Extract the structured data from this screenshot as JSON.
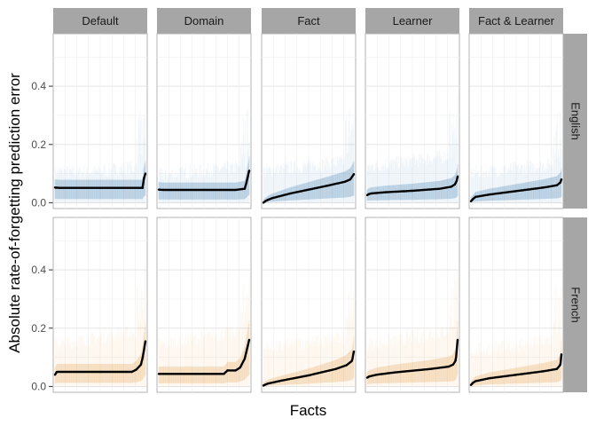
{
  "chart_data": {
    "type": "line",
    "xlabel": "Facts",
    "ylabel": "Absolute rate-of-forgetting prediction error",
    "ylim": [
      -0.02,
      0.58
    ],
    "yticks": [
      0.0,
      0.2,
      0.4
    ],
    "ytick_labels": [
      "0.0",
      "0.2",
      "0.4"
    ],
    "x_ticks_shown": false,
    "grid": true,
    "columns": [
      "Default",
      "Domain",
      "Fact",
      "Learner",
      "Fact & Learner"
    ],
    "rows": [
      "English",
      "French"
    ],
    "colors": {
      "English": "#4a86b5",
      "French": "#e6a85c",
      "line": "#000000",
      "strip": "#a6a6a6"
    },
    "panels": [
      {
        "row": "English",
        "column": "Default",
        "x": [
          0,
          0.05,
          0.5,
          0.97,
          0.98,
          1.0
        ],
        "y": [
          0.052,
          0.051,
          0.051,
          0.051,
          0.08,
          0.1
        ]
      },
      {
        "row": "English",
        "column": "Domain",
        "x": [
          0,
          0.05,
          0.5,
          0.85,
          0.9,
          0.95,
          0.97,
          1.0
        ],
        "y": [
          0.045,
          0.044,
          0.044,
          0.044,
          0.046,
          0.048,
          0.07,
          0.11
        ]
      },
      {
        "row": "English",
        "column": "Fact",
        "x": [
          0,
          0.02,
          0.05,
          0.1,
          0.3,
          0.5,
          0.7,
          0.9,
          0.96,
          1.0
        ],
        "y": [
          0.0,
          0.005,
          0.01,
          0.016,
          0.032,
          0.045,
          0.058,
          0.072,
          0.08,
          0.098
        ]
      },
      {
        "row": "English",
        "column": "Learner",
        "x": [
          0,
          0.02,
          0.05,
          0.2,
          0.5,
          0.8,
          0.93,
          0.97,
          0.99,
          1.0
        ],
        "y": [
          0.026,
          0.03,
          0.032,
          0.036,
          0.041,
          0.048,
          0.055,
          0.063,
          0.075,
          0.09
        ]
      },
      {
        "row": "English",
        "column": "Fact & Learner",
        "x": [
          0,
          0.02,
          0.05,
          0.2,
          0.5,
          0.8,
          0.95,
          0.99,
          1.0
        ],
        "y": [
          0.005,
          0.012,
          0.02,
          0.028,
          0.04,
          0.052,
          0.06,
          0.07,
          0.08
        ]
      },
      {
        "row": "French",
        "column": "Default",
        "x": [
          0,
          0.02,
          0.5,
          0.85,
          0.9,
          0.95,
          0.97,
          1.0
        ],
        "y": [
          0.04,
          0.05,
          0.05,
          0.05,
          0.058,
          0.075,
          0.1,
          0.155
        ]
      },
      {
        "row": "French",
        "column": "Domain",
        "x": [
          0,
          0.05,
          0.5,
          0.72,
          0.76,
          0.85,
          0.9,
          0.95,
          1.0
        ],
        "y": [
          0.043,
          0.043,
          0.043,
          0.043,
          0.055,
          0.055,
          0.065,
          0.095,
          0.16
        ]
      },
      {
        "row": "French",
        "column": "Fact",
        "x": [
          0,
          0.02,
          0.05,
          0.2,
          0.5,
          0.8,
          0.92,
          0.98,
          1.0
        ],
        "y": [
          0.003,
          0.006,
          0.01,
          0.02,
          0.038,
          0.06,
          0.073,
          0.088,
          0.12
        ]
      },
      {
        "row": "French",
        "column": "Learner",
        "x": [
          0,
          0.02,
          0.1,
          0.3,
          0.5,
          0.7,
          0.9,
          0.95,
          0.98,
          1.0
        ],
        "y": [
          0.03,
          0.034,
          0.04,
          0.048,
          0.054,
          0.06,
          0.068,
          0.075,
          0.09,
          0.16
        ]
      },
      {
        "row": "French",
        "column": "Fact & Learner",
        "x": [
          0,
          0.02,
          0.05,
          0.2,
          0.5,
          0.8,
          0.95,
          0.99,
          1.0
        ],
        "y": [
          0.005,
          0.012,
          0.018,
          0.028,
          0.04,
          0.052,
          0.06,
          0.075,
          0.11
        ]
      }
    ],
    "band_upper": {
      "English": {
        "Default": 0.1,
        "Domain": 0.1,
        "Fact": 0.12,
        "Learner": 0.14,
        "Fact & Learner": 0.11
      },
      "French": {
        "Default": 0.17,
        "Domain": 0.17,
        "Fact": 0.15,
        "Learner": 0.17,
        "Fact & Learner": 0.14
      }
    }
  }
}
